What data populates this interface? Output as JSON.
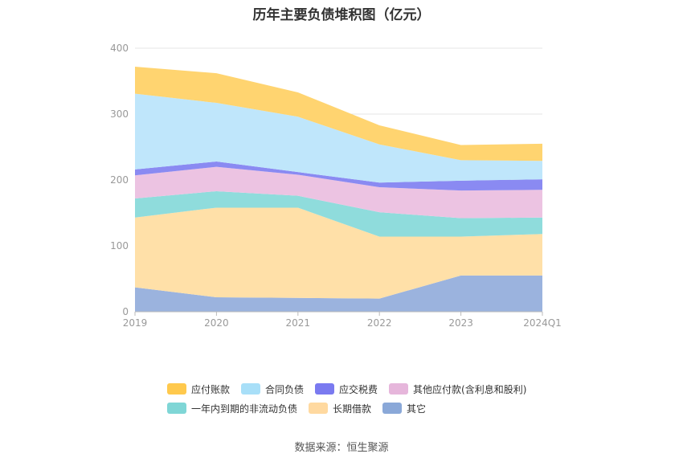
{
  "chart_data": {
    "type": "area",
    "stacked": true,
    "title": "历年主要负债堆积图（亿元）",
    "x": [
      "2019",
      "2020",
      "2021",
      "2022",
      "2023",
      "2024Q1"
    ],
    "yticks": [
      "0",
      "100",
      "200",
      "300",
      "400"
    ],
    "ylim": [
      0,
      400
    ],
    "grid": true,
    "legend_position": "bottom",
    "series": [
      {
        "name": "其它",
        "color": "#9bb3de",
        "values": [
          37,
          22,
          21,
          20,
          55,
          55
        ]
      },
      {
        "name": "长期借款",
        "color": "#ffe0a8",
        "values": [
          106,
          136,
          137,
          94,
          59,
          63
        ]
      },
      {
        "name": "一年内到期的非流动负债",
        "color": "#8fdcdc",
        "values": [
          29,
          25,
          18,
          37,
          28,
          25
        ]
      },
      {
        "name": "其他应付款(含利息和股利)",
        "color": "#ecc3e2",
        "values": [
          35,
          37,
          32,
          38,
          42,
          42
        ]
      },
      {
        "name": "应交税费",
        "color": "#8a8af2",
        "values": [
          9,
          8,
          4,
          7,
          15,
          16
        ]
      },
      {
        "name": "合同负债",
        "color": "#bfe6fb",
        "values": [
          115,
          89,
          84,
          58,
          31,
          28
        ]
      },
      {
        "name": "应付账款",
        "color": "#ffd470",
        "values": [
          41,
          45,
          37,
          29,
          23,
          26
        ]
      }
    ]
  },
  "legend": [
    [
      {
        "label": "应付账款",
        "color": "#ffc94d"
      },
      {
        "label": "合同负债",
        "color": "#a8dff8"
      },
      {
        "label": "应交税费",
        "color": "#7a7af0"
      },
      {
        "label": "其他应付款(含利息和股利)",
        "color": "#e6b6db"
      }
    ],
    [
      {
        "label": "一年内到期的非流动负债",
        "color": "#7fd6d6"
      },
      {
        "label": "长期借款",
        "color": "#ffd9a0"
      },
      {
        "label": "其它",
        "color": "#8aa8d8"
      }
    ]
  ],
  "source": "数据来源：恒生聚源"
}
